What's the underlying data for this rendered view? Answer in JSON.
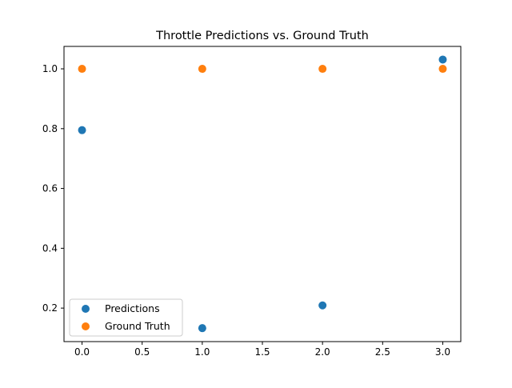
{
  "chart_data": {
    "type": "scatter",
    "title": "Throttle Predictions vs. Ground Truth",
    "xlabel": "",
    "ylabel": "",
    "xlim": [
      -0.15,
      3.15
    ],
    "ylim": [
      0.088,
      1.075
    ],
    "xticks": [
      0.0,
      0.5,
      1.0,
      1.5,
      2.0,
      2.5,
      3.0
    ],
    "xtick_labels": [
      "0.0",
      "0.5",
      "1.0",
      "1.5",
      "2.0",
      "2.5",
      "3.0"
    ],
    "yticks": [
      0.2,
      0.4,
      0.6,
      0.8,
      1.0
    ],
    "ytick_labels": [
      "0.2",
      "0.4",
      "0.6",
      "0.8",
      "1.0"
    ],
    "grid": false,
    "legend_position": "lower-left",
    "series": [
      {
        "name": "Predictions",
        "color": "#1f77b4",
        "x": [
          0,
          1,
          2,
          3
        ],
        "y": [
          0.795,
          0.133,
          0.209,
          1.031
        ]
      },
      {
        "name": "Ground Truth",
        "color": "#ff7f0e",
        "x": [
          0,
          1,
          2,
          3
        ],
        "y": [
          1.0,
          1.0,
          1.0,
          1.0
        ]
      }
    ]
  }
}
